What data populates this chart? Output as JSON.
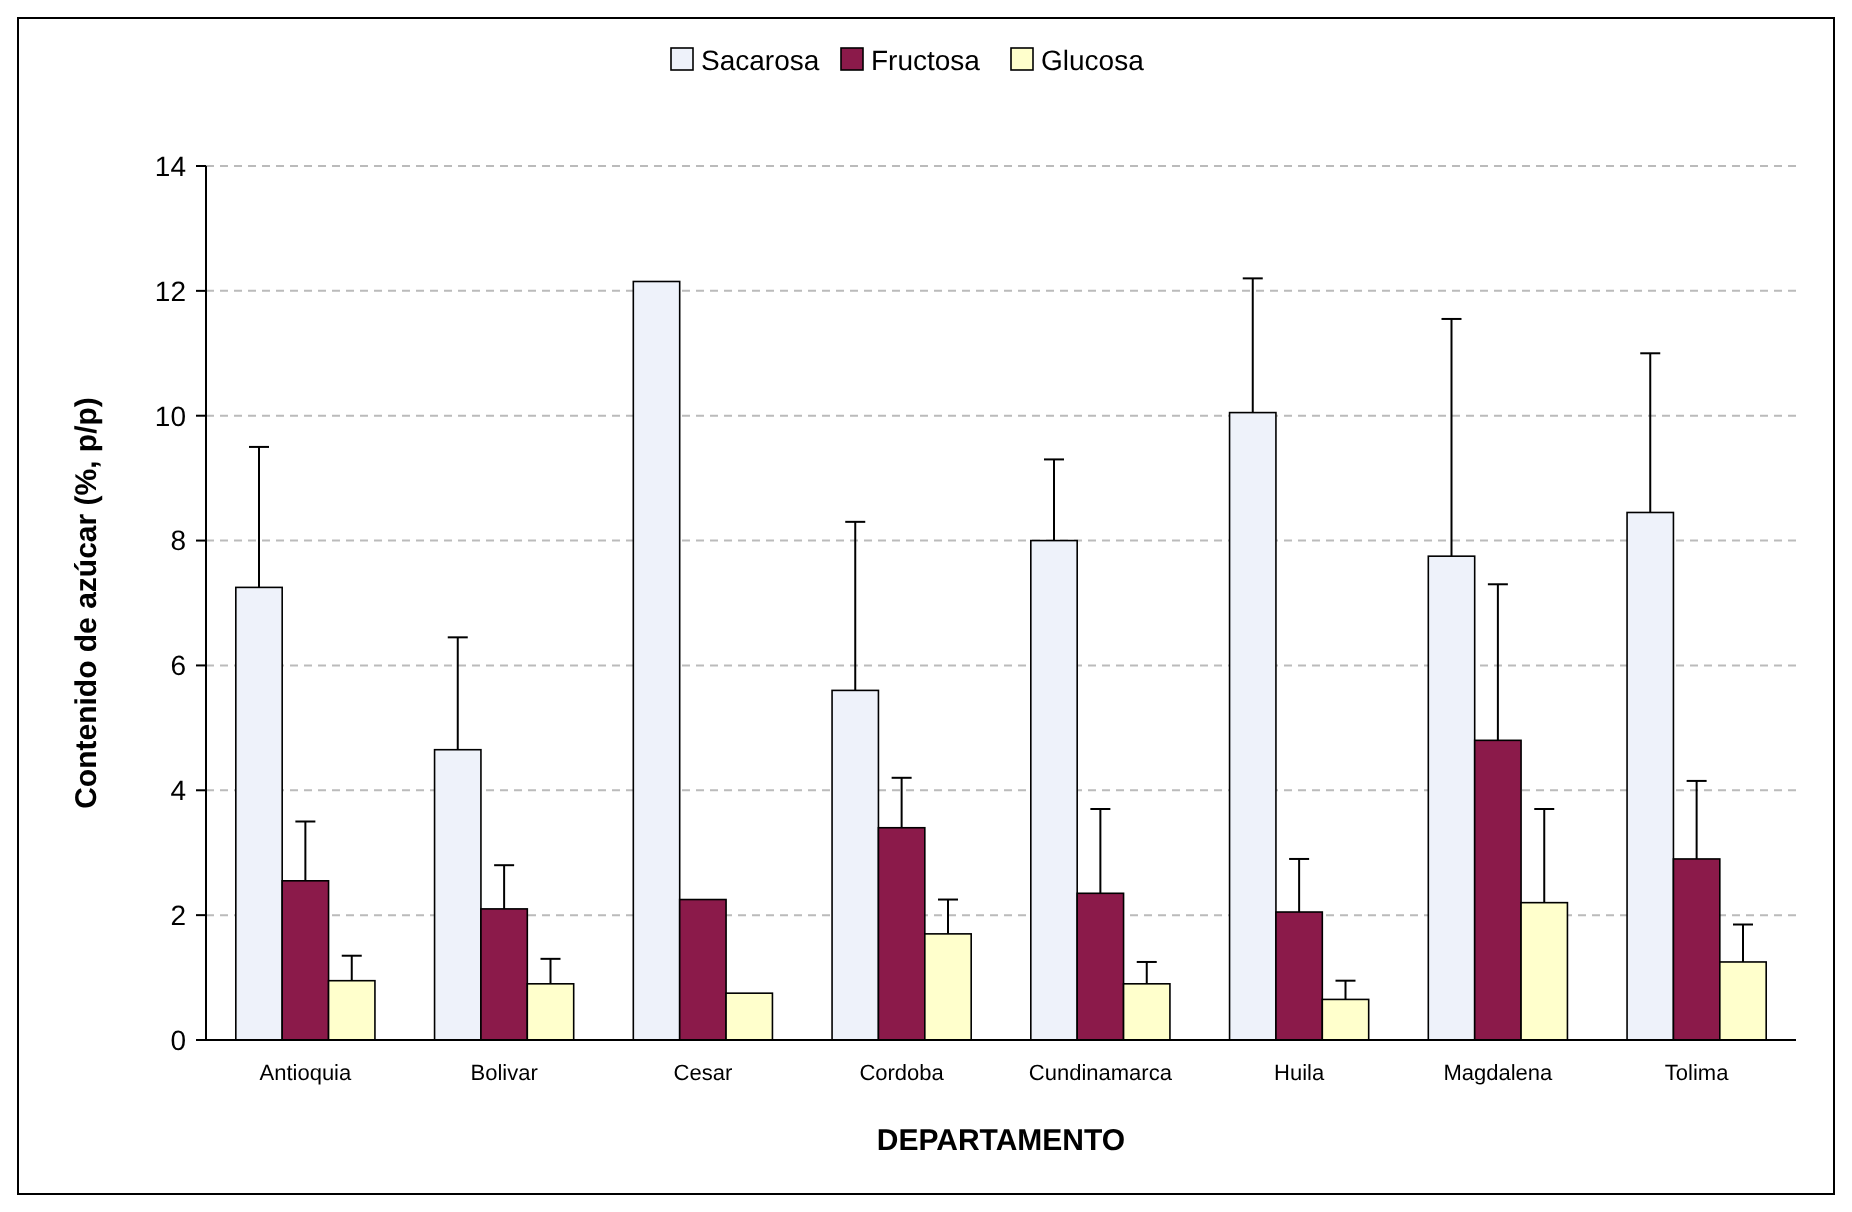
{
  "chart_data": {
    "type": "bar",
    "ylabel": "Contenido de azúcar (%, p/p)",
    "xlabel": "DEPARTAMENTO",
    "categories": [
      "Antioquia",
      "Bolivar",
      "Cesar",
      "Cordoba",
      "Cundinamarca",
      "Huila",
      "Magdalena",
      "Tolima"
    ],
    "series": [
      {
        "name": "Sacarosa",
        "color": "#eef2fa",
        "values": [
          7.25,
          4.65,
          12.15,
          5.6,
          8.0,
          10.05,
          7.75,
          8.45
        ],
        "errors": [
          [
            7.25,
            9.5
          ],
          [
            4.65,
            6.45
          ],
          null,
          [
            5.6,
            8.3
          ],
          [
            8.0,
            9.3
          ],
          [
            10.05,
            12.2
          ],
          [
            7.75,
            11.55
          ],
          [
            8.45,
            11.0
          ]
        ]
      },
      {
        "name": "Fructosa",
        "color": "#8b1a4a",
        "values": [
          2.55,
          2.1,
          2.25,
          3.4,
          2.35,
          2.05,
          4.8,
          2.9
        ],
        "errors": [
          [
            2.55,
            3.5
          ],
          [
            2.1,
            2.8
          ],
          null,
          [
            3.4,
            4.2
          ],
          [
            2.35,
            3.7
          ],
          [
            2.05,
            2.9
          ],
          [
            4.8,
            7.3
          ],
          [
            2.9,
            4.15
          ]
        ]
      },
      {
        "name": "Glucosa",
        "color": "#ffffcc",
        "values": [
          0.95,
          0.9,
          0.75,
          1.7,
          0.9,
          0.65,
          2.2,
          1.25
        ],
        "errors": [
          [
            0.95,
            1.35
          ],
          [
            0.9,
            1.3
          ],
          null,
          [
            1.7,
            2.25
          ],
          [
            0.9,
            1.25
          ],
          [
            0.65,
            0.95
          ],
          [
            2.2,
            3.7
          ],
          [
            1.25,
            1.85
          ]
        ]
      }
    ],
    "ylim": [
      0,
      14
    ],
    "yticks": [
      0,
      2,
      4,
      6,
      8,
      10,
      12,
      14
    ],
    "grid": "y",
    "legend": "top"
  }
}
